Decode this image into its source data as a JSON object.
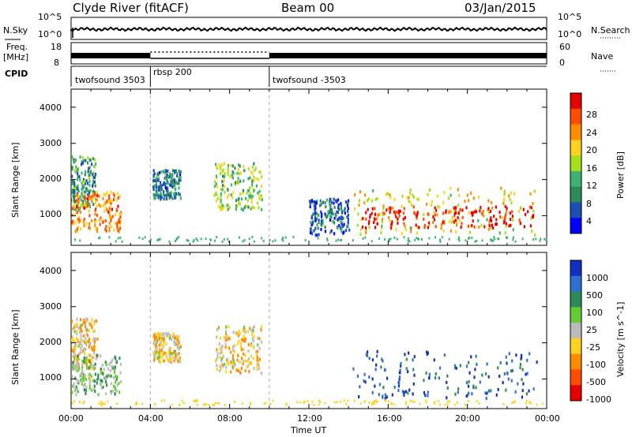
{
  "header": {
    "station": "Clyde River (fitACF)",
    "beam": "Beam 00",
    "date": "03/Jan/2015"
  },
  "noise_panel": {
    "left_label": "N.Sky",
    "right_label": "N.Search",
    "left_ticks": [
      "10^5",
      "10^0"
    ],
    "right_ticks": [
      "10^5",
      "10^0"
    ]
  },
  "freq_panel": {
    "left_label_1": "Freq.",
    "left_label_2": "[MHz]",
    "right_label": "Nave",
    "left_ticks": [
      "18",
      "8"
    ],
    "right_ticks": [
      "60",
      "0"
    ]
  },
  "cpid_panel": {
    "label": "CPID",
    "segments": [
      {
        "name": "twofsound 3503",
        "start_hour": 0,
        "end_hour": 4
      },
      {
        "name": "rbsp 200",
        "start_hour": 4,
        "end_hour": 10
      },
      {
        "name": "twofsound -3503",
        "start_hour": 10,
        "end_hour": 24
      }
    ]
  },
  "axes": {
    "ylabel": "Slant Range [km]",
    "xlabel": "Time UT",
    "y_ticks": [
      "1000",
      "2000",
      "3000",
      "4000"
    ],
    "x_ticks": [
      "00:00",
      "04:00",
      "08:00",
      "12:00",
      "16:00",
      "20:00",
      "00:00"
    ]
  },
  "power_colorbar": {
    "label": "Power [dB]",
    "ticks": [
      "28",
      "24",
      "20",
      "16",
      "12",
      "8",
      "4"
    ],
    "colors": [
      "#e60000",
      "#ff4d00",
      "#ff8c00",
      "#ffd21f",
      "#a6e01a",
      "#3cb371",
      "#2e8b57",
      "#1a4fb5",
      "#0000ff"
    ]
  },
  "velocity_colorbar": {
    "label": "Velocity [m s^-1]",
    "ticks": [
      "1000",
      "500",
      "100",
      "25",
      "-25",
      "-100",
      "-500",
      "-1000"
    ],
    "colors": [
      "#1030c0",
      "#2f6fd0",
      "#2e8b57",
      "#66cc33",
      "#bbbbbb",
      "#ffd21f",
      "#ff8c00",
      "#ff4d00",
      "#e60000"
    ]
  },
  "chart_data": {
    "type": "heatmap",
    "title": "Clyde River (fitACF) Beam 00 03/Jan/2015",
    "xlabel": "Time UT",
    "ylabel": "Slant Range [km]",
    "x_range_hours": [
      0,
      24
    ],
    "y_range_km": [
      180,
      4500
    ],
    "panels": [
      {
        "quantity": "Power [dB]",
        "color_range": [
          0,
          30
        ],
        "regions": [
          {
            "t0": 0.0,
            "t1": 1.2,
            "r0": 1200,
            "r1": 2700,
            "value": 10
          },
          {
            "t0": 0.0,
            "t1": 2.5,
            "r0": 600,
            "r1": 1700,
            "value": 22
          },
          {
            "t0": 4.1,
            "t1": 5.5,
            "r0": 1500,
            "r1": 2300,
            "value": 8
          },
          {
            "t0": 7.2,
            "t1": 9.6,
            "r0": 1200,
            "r1": 2500,
            "value": 14
          },
          {
            "t0": 12.0,
            "t1": 14.0,
            "r0": 500,
            "r1": 1500,
            "value": 6
          },
          {
            "t0": 14.2,
            "t1": 23.5,
            "r0": 500,
            "r1": 1800,
            "value": 18
          },
          {
            "t0": 14.6,
            "t1": 23.3,
            "r0": 700,
            "r1": 1300,
            "value": 28
          }
        ]
      },
      {
        "quantity": "Velocity [m s^-1]",
        "color_range": [
          -1000,
          1000
        ],
        "regions": [
          {
            "t0": 0.0,
            "t1": 1.3,
            "r0": 1300,
            "r1": 2700,
            "value": -200
          },
          {
            "t0": 0.0,
            "t1": 2.5,
            "r0": 600,
            "r1": 1700,
            "value": 200
          },
          {
            "t0": 4.1,
            "t1": 5.5,
            "r0": 1500,
            "r1": 2300,
            "value": -150
          },
          {
            "t0": 7.2,
            "t1": 9.6,
            "r0": 1200,
            "r1": 2500,
            "value": -200
          },
          {
            "t0": 14.2,
            "t1": 23.5,
            "r0": 500,
            "r1": 1800,
            "value": 700
          }
        ]
      }
    ]
  }
}
